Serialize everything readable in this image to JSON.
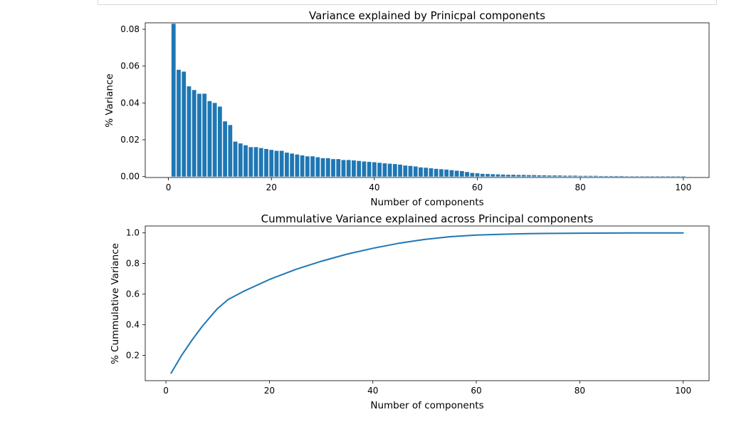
{
  "colors": {
    "bar": "#1f77b4",
    "line": "#1f77b4",
    "axis": "#000000",
    "cell_border": "#d9d9d9"
  },
  "chart_data": [
    {
      "type": "bar",
      "title": "Variance explained by Prinicpal components",
      "xlabel": "Number of components",
      "ylabel": "% Variance",
      "xlim": [
        -4.5,
        105
      ],
      "ylim": [
        -0.0005,
        0.0835
      ],
      "xticks": [
        0,
        20,
        40,
        60,
        80,
        100
      ],
      "xtick_labels": [
        "0",
        "20",
        "40",
        "60",
        "80",
        "100"
      ],
      "yticks": [
        0.0,
        0.02,
        0.04,
        0.06,
        0.08
      ],
      "ytick_labels": [
        "0.00",
        "0.02",
        "0.04",
        "0.06",
        "0.08"
      ],
      "grid": false,
      "x": [
        1,
        2,
        3,
        4,
        5,
        6,
        7,
        8,
        9,
        10,
        11,
        12,
        13,
        14,
        15,
        16,
        17,
        18,
        19,
        20,
        21,
        22,
        23,
        24,
        25,
        26,
        27,
        28,
        29,
        30,
        31,
        32,
        33,
        34,
        35,
        36,
        37,
        38,
        39,
        40,
        41,
        42,
        43,
        44,
        45,
        46,
        47,
        48,
        49,
        50,
        51,
        52,
        53,
        54,
        55,
        56,
        57,
        58,
        59,
        60,
        61,
        62,
        63,
        64,
        65,
        66,
        67,
        68,
        69,
        70,
        71,
        72,
        73,
        74,
        75,
        76,
        77,
        78,
        79,
        80,
        81,
        82,
        83,
        84,
        85,
        86,
        87,
        88,
        89,
        90,
        91,
        92,
        93,
        94,
        95,
        96,
        97,
        98,
        99,
        100
      ],
      "values": [
        0.083,
        0.058,
        0.057,
        0.049,
        0.047,
        0.045,
        0.045,
        0.041,
        0.04,
        0.038,
        0.03,
        0.028,
        0.019,
        0.018,
        0.017,
        0.016,
        0.016,
        0.0155,
        0.015,
        0.0145,
        0.014,
        0.014,
        0.013,
        0.0125,
        0.012,
        0.0115,
        0.011,
        0.011,
        0.0105,
        0.01,
        0.01,
        0.0095,
        0.0095,
        0.009,
        0.009,
        0.0088,
        0.0085,
        0.0082,
        0.008,
        0.0078,
        0.0075,
        0.0072,
        0.007,
        0.0068,
        0.0065,
        0.006,
        0.0058,
        0.0055,
        0.005,
        0.0048,
        0.0045,
        0.0042,
        0.004,
        0.0038,
        0.0035,
        0.0032,
        0.003,
        0.0025,
        0.002,
        0.0018,
        0.0015,
        0.0014,
        0.0013,
        0.0012,
        0.0011,
        0.001,
        0.001,
        0.0009,
        0.0009,
        0.0008,
        0.0008,
        0.0007,
        0.0007,
        0.0006,
        0.0006,
        0.0006,
        0.0005,
        0.0005,
        0.0005,
        0.0004,
        0.0004,
        0.0004,
        0.0004,
        0.0003,
        0.0003,
        0.0003,
        0.0003,
        0.0003,
        0.0002,
        0.0002,
        0.0002,
        0.0002,
        0.0002,
        0.0002,
        0.0001,
        0.0001,
        0.0001,
        0.0001,
        0.0001,
        0.0001
      ]
    },
    {
      "type": "line",
      "title": "Cummulative Variance explained across Principal components",
      "xlabel": "Number of components",
      "ylabel": "% Cummulative Variance",
      "xlim": [
        -4.0,
        105.0
      ],
      "ylim": [
        0.034,
        1.045
      ],
      "xticks": [
        0,
        20,
        40,
        60,
        80,
        100
      ],
      "xtick_labels": [
        "0",
        "20",
        "40",
        "60",
        "80",
        "100"
      ],
      "yticks": [
        0.2,
        0.4,
        0.6,
        0.8,
        1.0
      ],
      "ytick_labels": [
        "0.2",
        "0.4",
        "0.6",
        "0.8",
        "1.0"
      ],
      "grid": false,
      "x": [
        1,
        3,
        5,
        7,
        9,
        10,
        12,
        15,
        20,
        25,
        30,
        35,
        40,
        45,
        50,
        55,
        60,
        65,
        70,
        80,
        90,
        100
      ],
      "values": [
        0.083,
        0.198,
        0.297,
        0.388,
        0.468,
        0.506,
        0.564,
        0.618,
        0.695,
        0.76,
        0.814,
        0.861,
        0.899,
        0.932,
        0.957,
        0.975,
        0.986,
        0.991,
        0.995,
        0.998,
        0.9995,
        1.0
      ]
    }
  ]
}
